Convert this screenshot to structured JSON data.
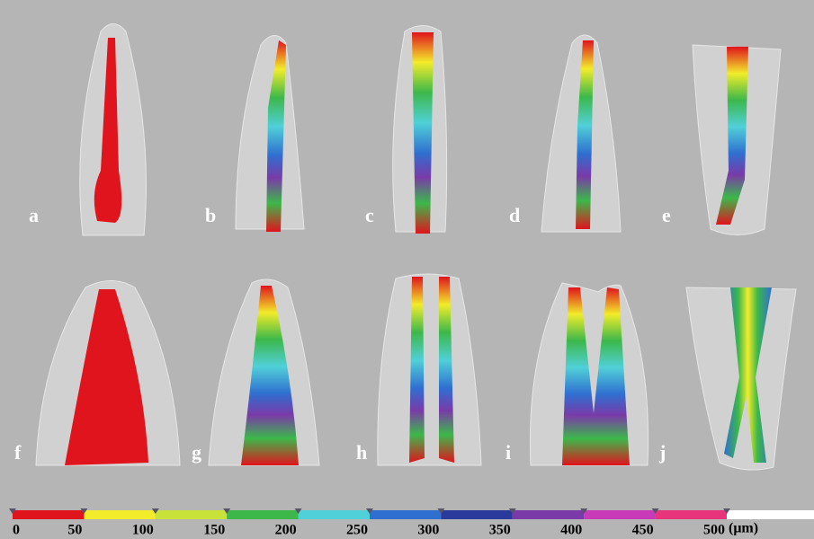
{
  "panels": [
    {
      "label": "a"
    },
    {
      "label": "b"
    },
    {
      "label": "c"
    },
    {
      "label": "d"
    },
    {
      "label": "e"
    },
    {
      "label": "f"
    },
    {
      "label": "g"
    },
    {
      "label": "h"
    },
    {
      "label": "i"
    },
    {
      "label": "j"
    }
  ],
  "colorbar": {
    "ticks": [
      0,
      50,
      100,
      150,
      200,
      250,
      300,
      350,
      400,
      450,
      500
    ],
    "colors": [
      "#e0141c",
      "#f2ec2a",
      "#c8e23a",
      "#3cb84a",
      "#50d0d8",
      "#2f6fd0",
      "#2a3a9c",
      "#7a3aa8",
      "#c83ab8",
      "#e8347a"
    ],
    "unit": "(μm)"
  }
}
